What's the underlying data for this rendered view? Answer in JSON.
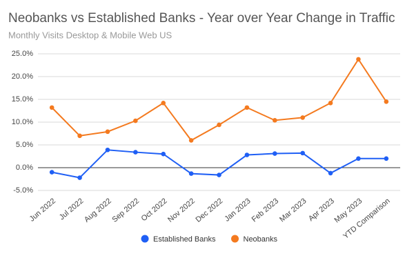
{
  "chart_data": {
    "type": "line",
    "title": "Neobanks vs Established Banks - Year over Year Change in Traffic",
    "subtitle": "Monthly Visits Desktop & Mobile Web US",
    "categories": [
      "Jun 2022",
      "Jul 2022",
      "Aug 2022",
      "Sep 2022",
      "Oct 2022",
      "Nov 2022",
      "Dec 2022",
      "Jan 2023",
      "Feb 2023",
      "Mar 2023",
      "Apr 2023",
      "May 2023",
      "YTD Comparison"
    ],
    "series": [
      {
        "name": "Established Banks",
        "color": "#1f5ff5",
        "values": [
          -1.0,
          -2.2,
          3.9,
          3.4,
          3.0,
          -1.3,
          -1.6,
          2.8,
          3.1,
          3.2,
          -1.2,
          2.0,
          2.0
        ]
      },
      {
        "name": "Neobanks",
        "color": "#f47a1f",
        "values": [
          13.2,
          7.0,
          7.9,
          10.3,
          14.2,
          6.0,
          9.4,
          13.2,
          10.4,
          11.0,
          14.2,
          23.8,
          14.5
        ]
      }
    ],
    "ylim": [
      -5,
      25
    ],
    "yticks": [
      {
        "value": -5,
        "label": "-5.0%"
      },
      {
        "value": 0,
        "label": "0.0%"
      },
      {
        "value": 5,
        "label": "5.0%"
      },
      {
        "value": 10,
        "label": "10.0%"
      },
      {
        "value": 15,
        "label": "15.0%"
      },
      {
        "value": 20,
        "label": "20.0%"
      },
      {
        "value": 25,
        "label": "25.0%"
      }
    ],
    "grid": true,
    "legend": "bottom"
  }
}
